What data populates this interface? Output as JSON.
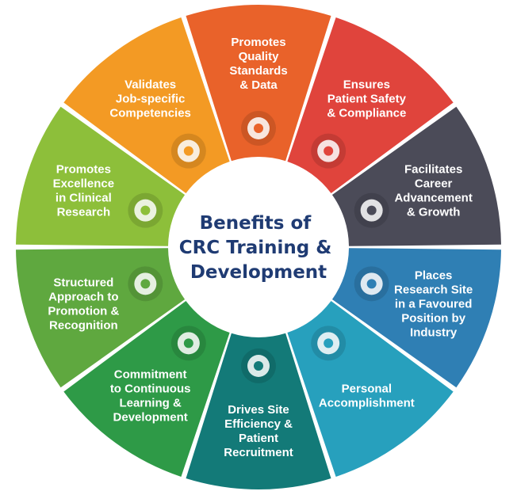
{
  "center": {
    "title_lines": [
      "Benefits of",
      "CRC Training &",
      "Development"
    ],
    "title_color": "#1f3b73"
  },
  "segments": [
    {
      "label_lines": [
        "Promotes",
        "Quality",
        "Standards",
        "& Data"
      ],
      "color": "#e9622a",
      "icon": "document-check-icon"
    },
    {
      "label_lines": [
        "Ensures",
        "Patient Safety",
        "& Compliance"
      ],
      "color": "#e0443c",
      "icon": "shield-plus-icon"
    },
    {
      "label_lines": [
        "Facilitates",
        "Career",
        "Advancement",
        "& Growth"
      ],
      "color": "#4b4b58",
      "icon": "hand-plant-icon"
    },
    {
      "label_lines": [
        "Places",
        "Research Site",
        "in a Favoured",
        "Position by",
        "Industry"
      ],
      "color": "#2f7fb4",
      "icon": "handshake-icon"
    },
    {
      "label_lines": [
        "Personal",
        "Accomplishment"
      ],
      "color": "#27a0bd",
      "icon": "medal-icon"
    },
    {
      "label_lines": [
        "Drives Site",
        "Efficiency &",
        "Patient",
        "Recruitment"
      ],
      "color": "#137a78",
      "icon": "team-gears-icon"
    },
    {
      "label_lines": [
        "Commitment",
        "to Continuous",
        "Learning &",
        "Development"
      ],
      "color": "#2e9a47",
      "icon": "hands-together-icon"
    },
    {
      "label_lines": [
        "Structured",
        "Approach to",
        "Promotion &",
        "Recognition"
      ],
      "color": "#5fa83f",
      "icon": "stairs-climb-icon"
    },
    {
      "label_lines": [
        "Promotes",
        "Excellence",
        "in Clinical",
        "Research"
      ],
      "color": "#8dbf3a",
      "icon": "trophy-icon"
    },
    {
      "label_lines": [
        "Validates",
        "Job-specific",
        "Competencies"
      ],
      "color": "#f39a24",
      "icon": "brain-bulb-icon"
    }
  ]
}
